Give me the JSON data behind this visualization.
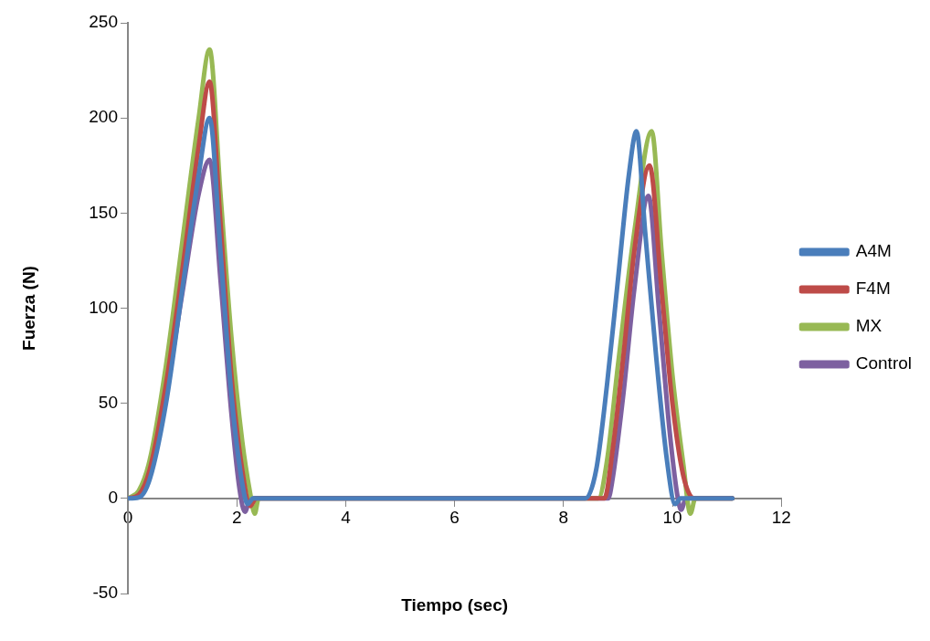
{
  "chart_data": {
    "type": "line",
    "xlabel": "Tiempo (sec)",
    "ylabel": "Fuerza (N)",
    "xlim": [
      0,
      12
    ],
    "xticks": [
      0,
      2,
      4,
      6,
      8,
      10,
      12
    ],
    "ylim": [
      -50,
      250
    ],
    "yticks": [
      -50,
      0,
      50,
      100,
      150,
      200,
      250
    ],
    "grid": false,
    "legend": "right",
    "marker": "none",
    "line_style": "solid",
    "series": [
      {
        "name": "A4M",
        "color": "#4a7ebb",
        "x": [
          0,
          0.2,
          0.4,
          0.7,
          1.0,
          1.3,
          1.5,
          1.7,
          1.9,
          2.1,
          2.2,
          2.3,
          8.4,
          8.6,
          8.8,
          9.0,
          9.2,
          9.34,
          9.5,
          9.7,
          9.9,
          10.05,
          10.15,
          11.1
        ],
        "values": [
          0,
          0.5,
          10,
          50,
          110,
          170,
          200,
          130,
          55,
          8,
          -3,
          0,
          0,
          15,
          60,
          115,
          170,
          193,
          140,
          75,
          20,
          -3,
          0,
          0
        ]
      },
      {
        "name": "F4M",
        "color": "#be4b48",
        "x": [
          0,
          0.2,
          0.4,
          0.7,
          1.0,
          1.3,
          1.5,
          1.7,
          1.9,
          2.1,
          2.25,
          2.35,
          8.75,
          8.9,
          9.1,
          9.3,
          9.58,
          9.8,
          10.0,
          10.2,
          10.4,
          11.1
        ],
        "values": [
          0,
          2,
          15,
          60,
          120,
          185,
          219,
          145,
          65,
          15,
          -4,
          0,
          0,
          25,
          75,
          130,
          175,
          110,
          50,
          12,
          0,
          0
        ]
      },
      {
        "name": "MX",
        "color": "#98b954",
        "x": [
          0,
          0.2,
          0.4,
          0.7,
          1.0,
          1.3,
          1.5,
          1.7,
          1.9,
          2.1,
          2.25,
          2.33,
          2.4,
          8.64,
          8.8,
          9.0,
          9.3,
          9.62,
          9.8,
          10.0,
          10.2,
          10.33,
          10.42,
          11.1
        ],
        "values": [
          0,
          4,
          20,
          70,
          135,
          200,
          236,
          160,
          85,
          30,
          2,
          -8,
          0,
          0,
          20,
          70,
          140,
          193,
          130,
          65,
          18,
          -8,
          0,
          0
        ]
      },
      {
        "name": "Control",
        "color": "#7d60a0",
        "x": [
          0,
          0.2,
          0.4,
          0.7,
          1.0,
          1.3,
          1.5,
          1.7,
          1.9,
          2.05,
          2.15,
          2.25,
          8.82,
          8.9,
          9.1,
          9.3,
          9.56,
          9.75,
          9.95,
          10.1,
          10.16,
          10.25,
          11.1
        ],
        "values": [
          0,
          2,
          14,
          55,
          108,
          160,
          178,
          115,
          45,
          5,
          -7,
          0,
          0,
          10,
          55,
          110,
          159,
          100,
          35,
          0,
          -6,
          0,
          0
        ]
      }
    ]
  }
}
